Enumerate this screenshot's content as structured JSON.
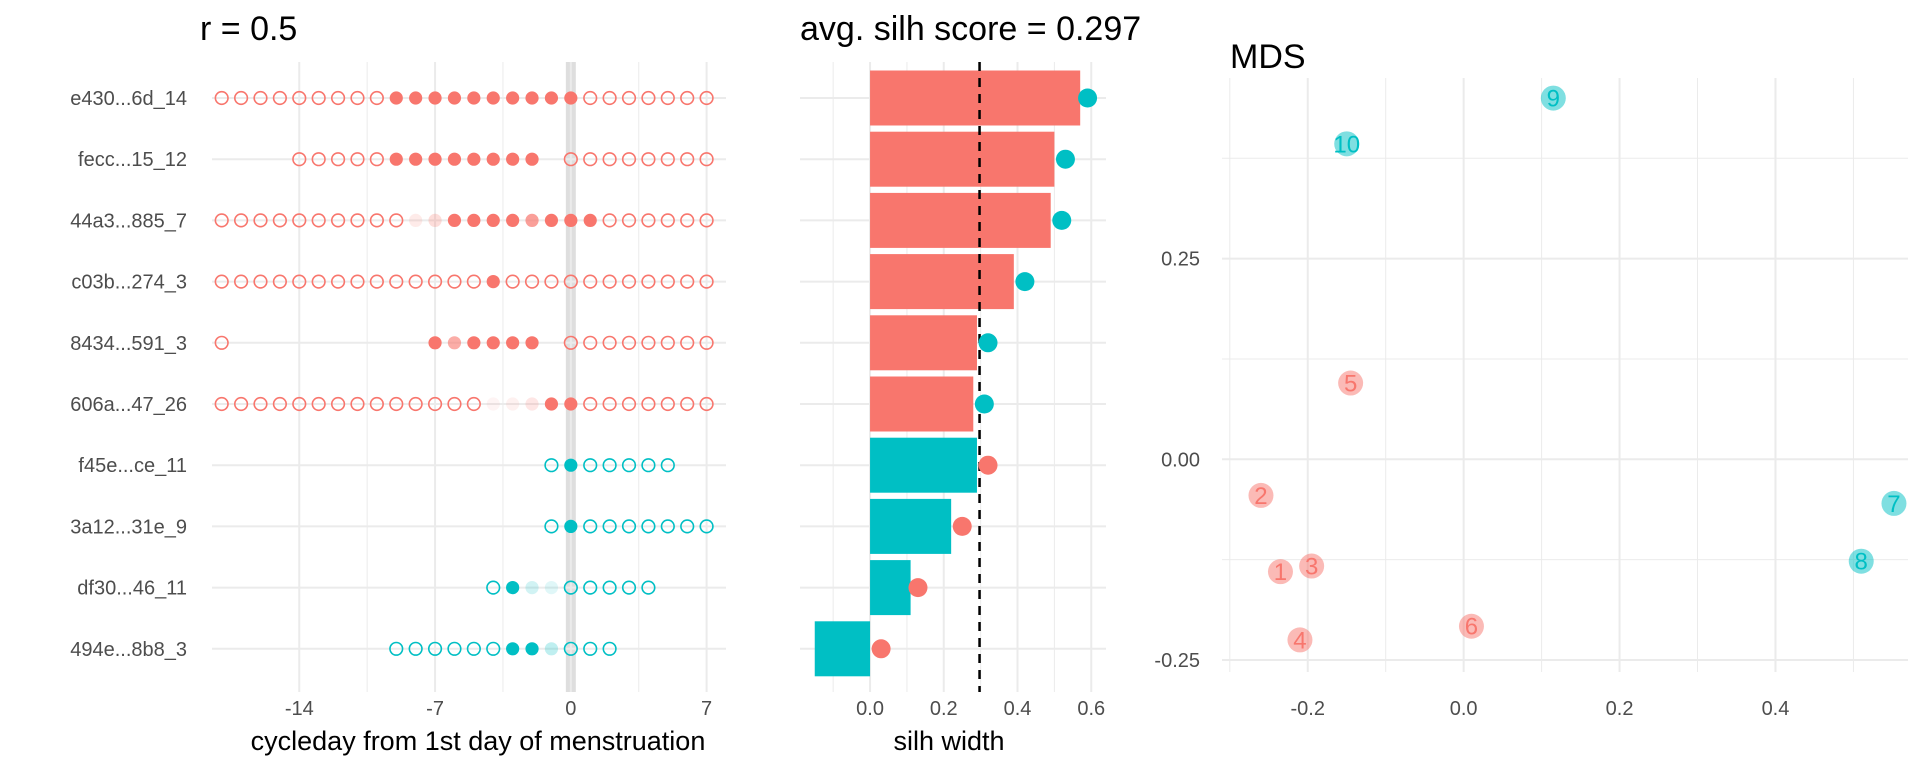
{
  "colors": {
    "cluster1": "#F8766D",
    "cluster2": "#00BFC4",
    "grid": "#EBEBEB",
    "band": "#DEDEDE"
  },
  "panel1": {
    "title": "r = 0.5",
    "xlabel": "cycleday from 1st day of menstruation",
    "xticks": [
      -14,
      -7,
      0,
      7
    ],
    "xlim": [
      -18.5,
      8
    ],
    "rows": [
      {
        "id": "e430...6d_14",
        "cluster": 1,
        "open": [
          -18,
          -17,
          -16,
          -15,
          -14,
          -13,
          -12,
          -11,
          -10,
          1,
          2,
          3,
          4,
          5,
          6,
          7
        ],
        "filled": [
          [
            -9,
            1
          ],
          [
            -8,
            1
          ],
          [
            -7,
            1
          ],
          [
            -6,
            1
          ],
          [
            -5,
            1
          ],
          [
            -4,
            1
          ],
          [
            -3,
            1
          ],
          [
            -2,
            1
          ],
          [
            -1,
            1
          ],
          [
            0,
            1
          ]
        ]
      },
      {
        "id": "fecc...15_12",
        "cluster": 1,
        "open": [
          -14,
          -13,
          -12,
          -11,
          -10,
          0,
          1,
          2,
          3,
          4,
          5,
          6,
          7
        ],
        "filled": [
          [
            -9,
            1
          ],
          [
            -8,
            1
          ],
          [
            -7,
            1
          ],
          [
            -6,
            1
          ],
          [
            -5,
            1
          ],
          [
            -4,
            1
          ],
          [
            -3,
            1
          ],
          [
            -2,
            1
          ]
        ]
      },
      {
        "id": "44a3...885_7",
        "cluster": 1,
        "open": [
          -18,
          -17,
          -16,
          -15,
          -14,
          -13,
          -12,
          -11,
          -10,
          -9,
          2,
          3,
          4,
          5,
          6,
          7
        ],
        "filled": [
          [
            -8,
            0.15
          ],
          [
            -7,
            0.25
          ],
          [
            -6,
            1
          ],
          [
            -5,
            1
          ],
          [
            -4,
            1
          ],
          [
            -3,
            1
          ],
          [
            -2,
            0.7
          ],
          [
            -1,
            1
          ],
          [
            0,
            1
          ],
          [
            1,
            1
          ]
        ]
      },
      {
        "id": "c03b...274_3",
        "cluster": 1,
        "open": [
          -18,
          -17,
          -16,
          -15,
          -14,
          -13,
          -12,
          -11,
          -10,
          -9,
          -8,
          -7,
          -6,
          -5,
          -3,
          -2,
          -1,
          0,
          1,
          2,
          3,
          4,
          5,
          6,
          7
        ],
        "filled": [
          [
            -4,
            1
          ]
        ]
      },
      {
        "id": "8434...591_3",
        "cluster": 1,
        "open": [
          -18,
          0,
          1,
          2,
          3,
          4,
          5,
          6,
          7
        ],
        "filled": [
          [
            -7,
            1
          ],
          [
            -6,
            0.6
          ],
          [
            -5,
            1
          ],
          [
            -4,
            1
          ],
          [
            -3,
            1
          ],
          [
            -2,
            1
          ]
        ]
      },
      {
        "id": "606a...47_26",
        "cluster": 1,
        "open": [
          -18,
          -17,
          -16,
          -15,
          -14,
          -13,
          -12,
          -11,
          -10,
          -9,
          -8,
          -7,
          -6,
          -5,
          1,
          2,
          3,
          4,
          5,
          6,
          7
        ],
        "filled": [
          [
            -4,
            0.08
          ],
          [
            -3,
            0.1
          ],
          [
            -2,
            0.18
          ],
          [
            -1,
            1
          ],
          [
            0,
            1
          ]
        ]
      },
      {
        "id": "f45e...ce_11",
        "cluster": 2,
        "open": [
          -1,
          1,
          2,
          3,
          4,
          5
        ],
        "filled": [
          [
            0,
            1
          ]
        ]
      },
      {
        "id": "3a12...31e_9",
        "cluster": 2,
        "open": [
          -1,
          1,
          2,
          3,
          4,
          5,
          6,
          7
        ],
        "filled": [
          [
            0,
            1
          ]
        ]
      },
      {
        "id": "df30...46_11",
        "cluster": 2,
        "open": [
          -4,
          0,
          1,
          2,
          3,
          4
        ],
        "filled": [
          [
            -3,
            1
          ],
          [
            -2,
            0.18
          ],
          [
            -1,
            0.12
          ]
        ]
      },
      {
        "id": "494e...8b8_3",
        "cluster": 2,
        "open": [
          -9,
          -8,
          -7,
          -6,
          -5,
          -4,
          0,
          1,
          2
        ],
        "filled": [
          [
            -3,
            1
          ],
          [
            -2,
            1
          ],
          [
            -1,
            0.25
          ]
        ]
      }
    ]
  },
  "panel2": {
    "title": "avg. silh score = 0.297",
    "xlabel": "silh width",
    "xticks": [
      "0.0",
      "0.2",
      "0.4",
      "0.6"
    ],
    "avg": 0.297,
    "xlim": [
      -0.19,
      0.64
    ]
  },
  "panel3": {
    "title": "MDS",
    "xticks": [
      "-0.2",
      "0.0",
      "0.2",
      "0.4"
    ],
    "yticks": [
      "-0.25",
      "0.00",
      "0.25"
    ],
    "xlim": [
      -0.31,
      0.57
    ],
    "ylim": [
      -0.265,
      0.475
    ]
  },
  "chart_data": [
    {
      "type": "scatter",
      "title": "r = 0.5",
      "xlabel": "cycleday from 1st day of menstruation",
      "categories": [
        "e430...6d_14",
        "fecc...15_12",
        "44a3...885_7",
        "c03b...274_3",
        "8434...591_3",
        "606a...47_26",
        "f45e...ce_11",
        "3a12...31e_9",
        "df30...46_11",
        "494e...8b8_3"
      ],
      "xlim": [
        -18.5,
        8
      ],
      "grid": true
    },
    {
      "type": "bar",
      "title": "avg. silh score = 0.297",
      "xlabel": "silh width",
      "categories": [
        "e430...6d_14",
        "fecc...15_12",
        "44a3...885_7",
        "c03b...274_3",
        "8434...591_3",
        "606a...47_26",
        "f45e...ce_11",
        "3a12...31e_9",
        "df30...46_11",
        "494e...8b8_3"
      ],
      "values": [
        0.57,
        0.5,
        0.49,
        0.39,
        0.29,
        0.28,
        0.29,
        0.22,
        0.11,
        -0.15
      ],
      "cluster": [
        1,
        1,
        1,
        1,
        1,
        1,
        2,
        2,
        2,
        2
      ],
      "neighbor_cluster": [
        2,
        2,
        2,
        2,
        2,
        2,
        1,
        1,
        1,
        1
      ],
      "neighbor_values": [
        0.59,
        0.53,
        0.52,
        0.42,
        0.32,
        0.31,
        0.32,
        0.25,
        0.13,
        0.03
      ],
      "reference_line": 0.297,
      "xlim": [
        -0.19,
        0.64
      ],
      "grid": true
    },
    {
      "type": "scatter",
      "title": "MDS",
      "points": [
        {
          "label": "1",
          "x": -0.235,
          "y": -0.14,
          "cluster": 1
        },
        {
          "label": "2",
          "x": -0.26,
          "y": -0.045,
          "cluster": 1
        },
        {
          "label": "3",
          "x": -0.195,
          "y": -0.133,
          "cluster": 1
        },
        {
          "label": "4",
          "x": -0.21,
          "y": -0.225,
          "cluster": 1
        },
        {
          "label": "5",
          "x": -0.145,
          "y": 0.095,
          "cluster": 1
        },
        {
          "label": "6",
          "x": 0.01,
          "y": -0.208,
          "cluster": 1
        },
        {
          "label": "7",
          "x": 0.552,
          "y": -0.055,
          "cluster": 2
        },
        {
          "label": "8",
          "x": 0.51,
          "y": -0.127,
          "cluster": 2
        },
        {
          "label": "9",
          "x": 0.115,
          "y": 0.45,
          "cluster": 2
        },
        {
          "label": "10",
          "x": -0.15,
          "y": 0.393,
          "cluster": 2
        }
      ],
      "xlim": [
        -0.31,
        0.57
      ],
      "ylim": [
        -0.265,
        0.475
      ],
      "grid": true
    }
  ]
}
